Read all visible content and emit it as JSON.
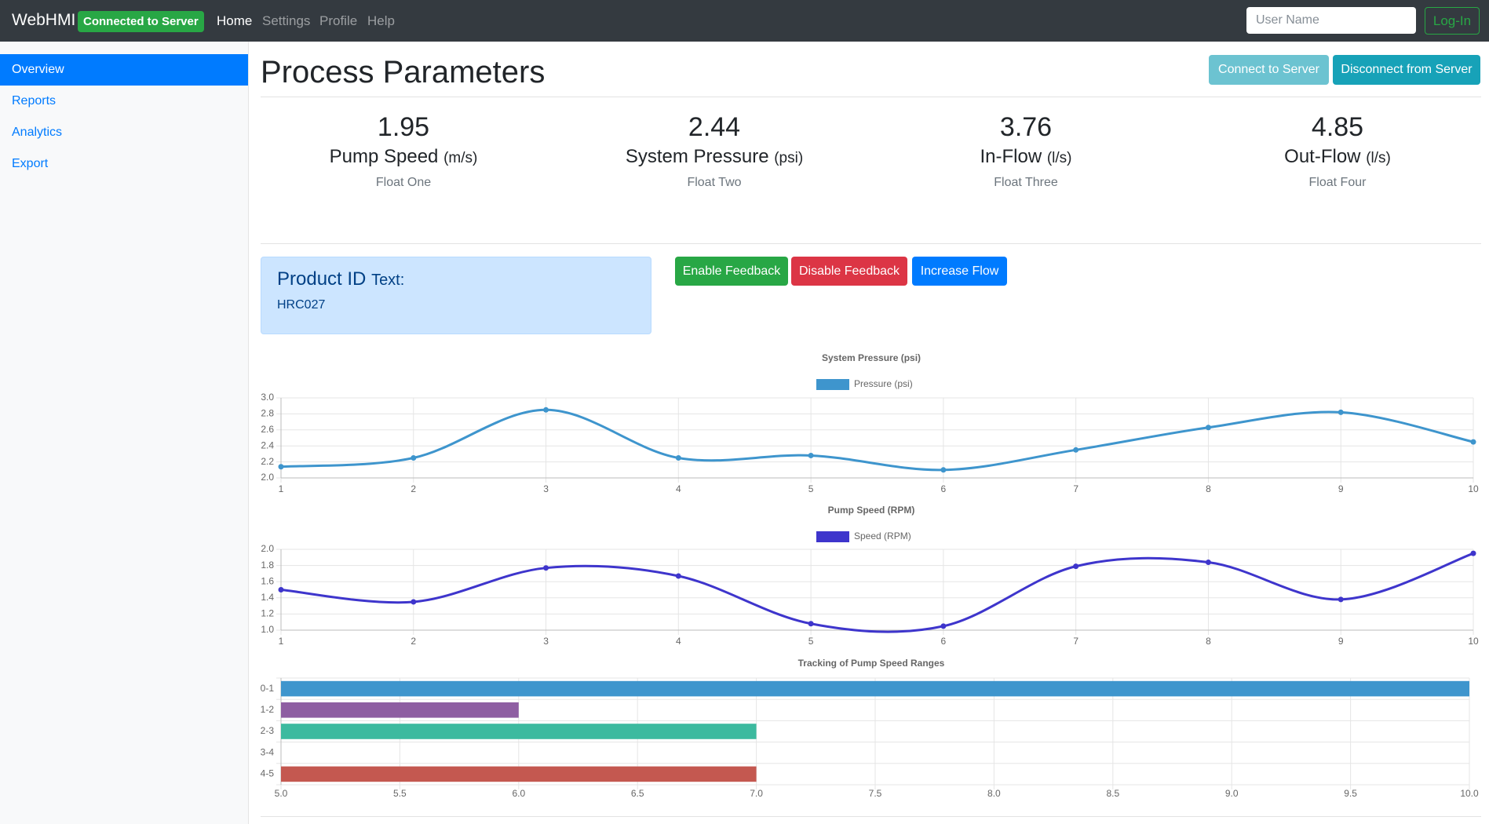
{
  "navbar": {
    "brand": "WebHMI",
    "status": "Connected to Server",
    "links": [
      "Home",
      "Settings",
      "Profile",
      "Help"
    ],
    "username_placeholder": "User Name",
    "login": "Log-In"
  },
  "sidebar": [
    "Overview",
    "Reports",
    "Analytics",
    "Export"
  ],
  "header": {
    "title": "Process Parameters",
    "buttons": [
      "Connect to Server",
      "Disconnect from Server"
    ]
  },
  "metrics": [
    {
      "value": 1.95,
      "label": "Pump Speed",
      "unit": "(m/s)",
      "caption": "Float One"
    },
    {
      "value": 2.44,
      "label": "System Pressure",
      "unit": "(psi)",
      "caption": "Float Two"
    },
    {
      "value": 3.76,
      "label": "In-Flow",
      "unit": "(l/s)",
      "caption": "Float Three"
    },
    {
      "value": 4.85,
      "label": "Out-Flow",
      "unit": "(l/s)",
      "caption": "Float Four"
    }
  ],
  "product": {
    "title": "Product ID",
    "suffix": "Text:",
    "value": "HRC027"
  },
  "actions": [
    "Enable Feedback",
    "Disable Feedback",
    "Increase Flow"
  ],
  "chart_data": [
    {
      "type": "line",
      "title": "System Pressure (psi)",
      "x": [
        1,
        2,
        3,
        4,
        5,
        6,
        7,
        8,
        9,
        10
      ],
      "xlim": [
        1,
        10
      ],
      "series": [
        {
          "name": "Pressure (psi)",
          "color": "#3e95cd",
          "values": [
            2.14,
            2.25,
            2.85,
            2.25,
            2.28,
            2.1,
            2.35,
            2.63,
            2.82,
            2.45
          ]
        }
      ],
      "ylim": [
        2,
        3
      ],
      "yticks": [
        {
          "value": 2,
          "label": "2.0"
        },
        2.2,
        2.4,
        2.6,
        2.8,
        {
          "value": 3,
          "label": "3.0"
        }
      ],
      "grid": true
    },
    {
      "type": "line",
      "title": "Pump Speed (RPM)",
      "x": [
        1,
        2,
        3,
        4,
        5,
        6,
        7,
        8,
        9,
        10
      ],
      "xlim": [
        1,
        10
      ],
      "series": [
        {
          "name": "Speed (RPM)",
          "color": "#3e35cc",
          "values": [
            1.5,
            1.35,
            1.77,
            1.67,
            1.08,
            1.05,
            1.79,
            1.84,
            1.38,
            1.95
          ]
        }
      ],
      "ylim": [
        1,
        2
      ],
      "yticks": [
        {
          "value": 1,
          "label": "1.0"
        },
        1.2,
        1.4,
        1.6,
        1.8,
        {
          "value": 2,
          "label": "2.0"
        }
      ],
      "grid": true
    },
    {
      "type": "hbar",
      "title": "Tracking of Pump Speed Ranges",
      "categories": [
        "0-1",
        "1-2",
        "2-3",
        "3-4",
        "4-5"
      ],
      "values": [
        10,
        6,
        7,
        5,
        7
      ],
      "colors": [
        "#3e95cd",
        "#8e5ea2",
        "#3cba9f",
        "#e8c3b9",
        "#c45850"
      ],
      "xlim": [
        5,
        10
      ],
      "xticks": [
        {
          "value": 5,
          "label": "5.0"
        },
        5.5,
        {
          "value": 6,
          "label": "6.0"
        },
        6.5,
        {
          "value": 7,
          "label": "7.0"
        },
        7.5,
        {
          "value": 8,
          "label": "8.0"
        },
        8.5,
        {
          "value": 9,
          "label": "9.0"
        },
        9.5,
        {
          "value": 10,
          "label": "10.0"
        }
      ],
      "grid": true
    }
  ]
}
